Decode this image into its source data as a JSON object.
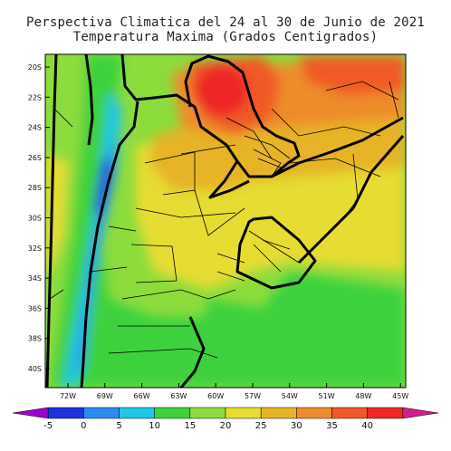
{
  "header": {
    "title_line1": "Perspectiva Climatica del 24 al 30 de Junio de 2021",
    "title_line2": "Temperatura Maxima (Grados Centigrados)"
  },
  "map": {
    "lat_labels": [
      "20S",
      "22S",
      "24S",
      "26S",
      "28S",
      "30S",
      "32S",
      "34S",
      "36S",
      "38S",
      "40S"
    ],
    "lon_labels": [
      "72W",
      "69W",
      "66W",
      "63W",
      "60W",
      "57W",
      "54W",
      "51W",
      "48W",
      "45W"
    ]
  },
  "colorbar": {
    "ticks": [
      "-5",
      "0",
      "5",
      "10",
      "15",
      "20",
      "25",
      "30",
      "35",
      "40"
    ],
    "colors": [
      "#a000c8",
      "#1e32dc",
      "#2a8cf0",
      "#1ec8e6",
      "#3cd23c",
      "#8cdc3c",
      "#e6dc32",
      "#e6b428",
      "#ee8c2c",
      "#f05a28",
      "#ee2828",
      "#d21e8c"
    ]
  }
}
